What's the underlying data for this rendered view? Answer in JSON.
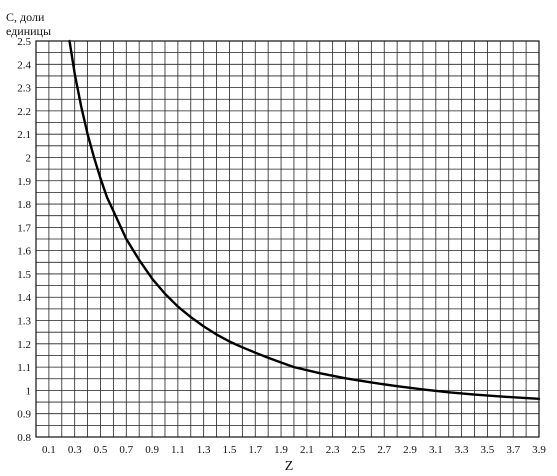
{
  "chart_data": {
    "type": "line",
    "ylabel_line1": "С, доли",
    "ylabel_line2": "единицы",
    "xlabel": "Z",
    "xlim": [
      0.0,
      3.9
    ],
    "ylim": [
      0.8,
      2.5
    ],
    "x_tick_labels": [
      "0.1",
      "0.3",
      "0.5",
      "0.7",
      "0.9",
      "1.1",
      "1.3",
      "1.5",
      "1.7",
      "1.9",
      "2.1",
      "2.3",
      "2.5",
      "2.7",
      "2.9",
      "3.1",
      "3.3",
      "3.5",
      "3.7",
      "3.9"
    ],
    "y_tick_labels": [
      "0.8",
      "0.9",
      "1",
      "1.1",
      "1.2",
      "1.3",
      "1.4",
      "1.5",
      "1.6",
      "1.7",
      "1.8",
      "1.9",
      "2",
      "2.1",
      "2.2",
      "2.3",
      "2.4",
      "2.5"
    ],
    "grid": true,
    "series": [
      {
        "x": [
          0.26,
          0.3,
          0.35,
          0.4,
          0.45,
          0.5,
          0.55,
          0.6,
          0.7,
          0.8,
          0.9,
          1.0,
          1.1,
          1.2,
          1.3,
          1.4,
          1.5,
          1.6,
          1.7,
          1.8,
          1.9,
          2.0,
          2.2,
          2.4,
          2.6,
          2.8,
          3.0,
          3.2,
          3.4,
          3.6,
          3.8,
          3.9
        ],
        "y": [
          2.5,
          2.36,
          2.22,
          2.1,
          2.0,
          1.91,
          1.83,
          1.77,
          1.65,
          1.56,
          1.48,
          1.415,
          1.36,
          1.315,
          1.275,
          1.24,
          1.21,
          1.185,
          1.162,
          1.14,
          1.12,
          1.1,
          1.074,
          1.052,
          1.034,
          1.018,
          1.004,
          0.992,
          0.982,
          0.974,
          0.967,
          0.964
        ]
      }
    ]
  }
}
